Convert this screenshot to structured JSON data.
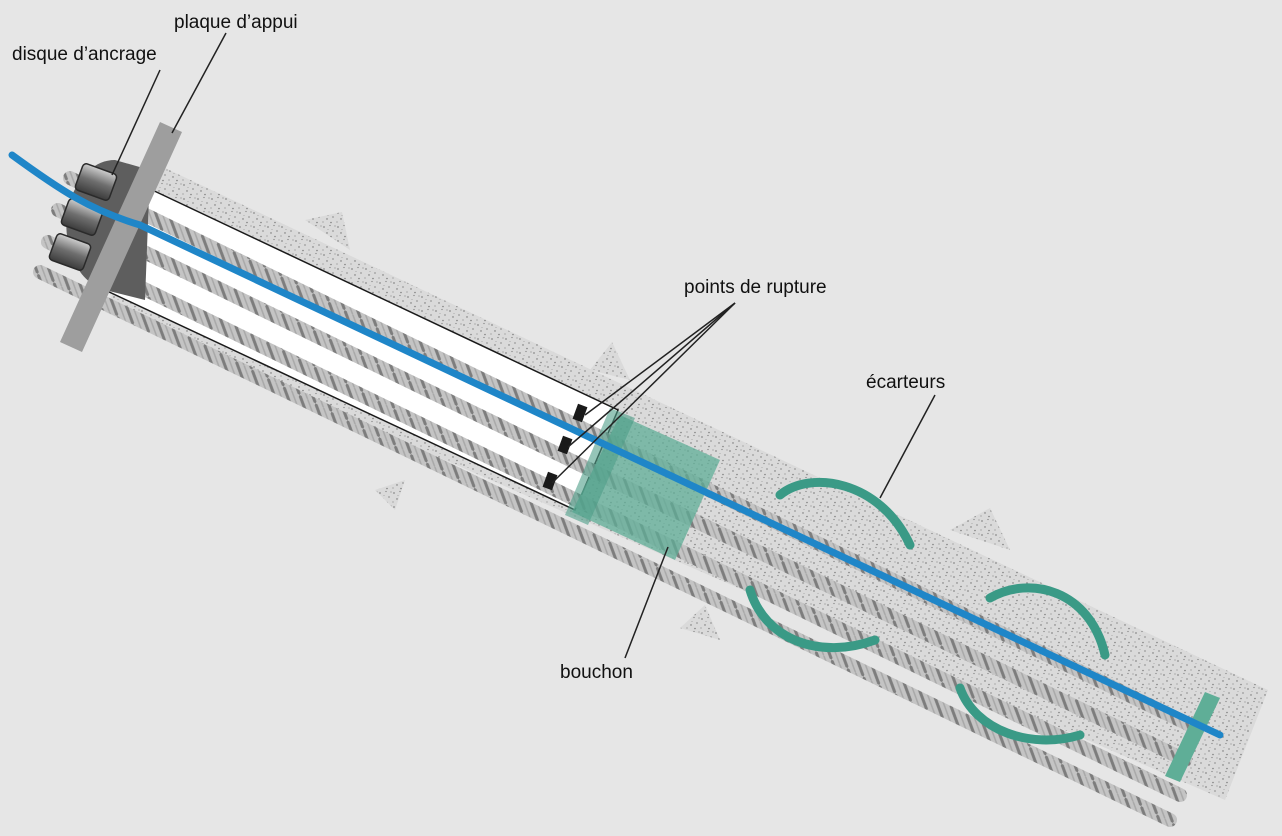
{
  "labels": {
    "bearing_plate": "plaque d’appui",
    "anchor_disc": "disque d’ancrage",
    "break_points": "points de rupture",
    "spacers": "écarteurs",
    "plug": "bouchon"
  },
  "colors": {
    "background": "#e6e6e6",
    "grout": "#d9d9d9",
    "grout_speckle": "#8c8c8c",
    "sheath_interior": "#ffffff",
    "strand_light": "#c4c4c4",
    "strand_dark": "#7d7d7d",
    "injection_tube": "#1f86c8",
    "spacer": "#3a9a86",
    "plug": "#5fae97",
    "anchor_disc": "#5e5e5e",
    "bearing_plate": "#9e9e9e",
    "break_point": "#1a1a1a",
    "leader_line": "#222222"
  }
}
